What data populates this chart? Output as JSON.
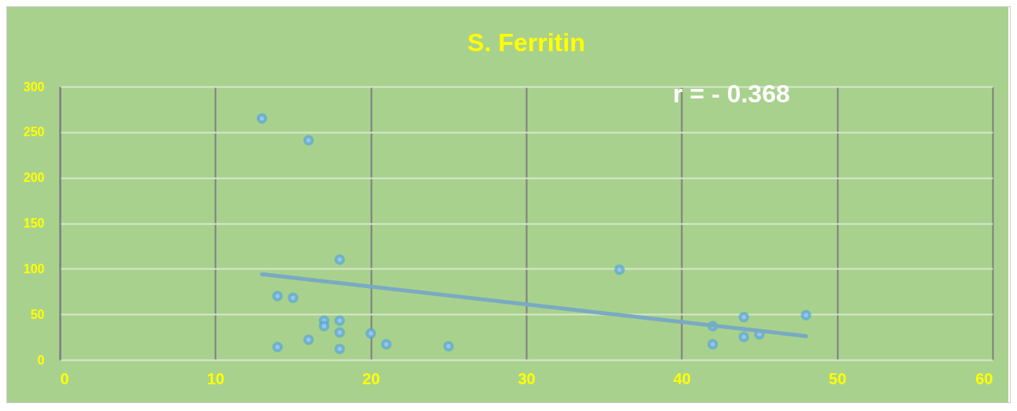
{
  "chart_data": {
    "type": "scatter",
    "title": "S. Ferritin",
    "annotations": [
      "r =  - 0.368"
    ],
    "xlim": [
      0,
      60
    ],
    "xticks": [
      0,
      10,
      20,
      30,
      40,
      50,
      60
    ],
    "ylim": [
      0,
      300
    ],
    "yticks": [
      0,
      50,
      100,
      150,
      200,
      250,
      300
    ],
    "grid": true,
    "series": [
      {
        "marker": "circle",
        "color": "#9dc3e6",
        "x": [
          13,
          16,
          18,
          14,
          15,
          17,
          17,
          18,
          18,
          20,
          14,
          16,
          18,
          21,
          25,
          36,
          42,
          42,
          44,
          44,
          45,
          48
        ],
        "values": [
          265,
          241,
          110,
          70,
          68,
          43,
          37,
          43,
          30,
          29,
          14,
          22,
          12,
          17,
          15,
          99,
          37,
          17,
          47,
          25,
          28,
          49
        ]
      },
      {
        "type": "line",
        "color": "#7aaac2",
        "x": [
          13,
          48
        ],
        "values": [
          94,
          26
        ]
      }
    ]
  }
}
